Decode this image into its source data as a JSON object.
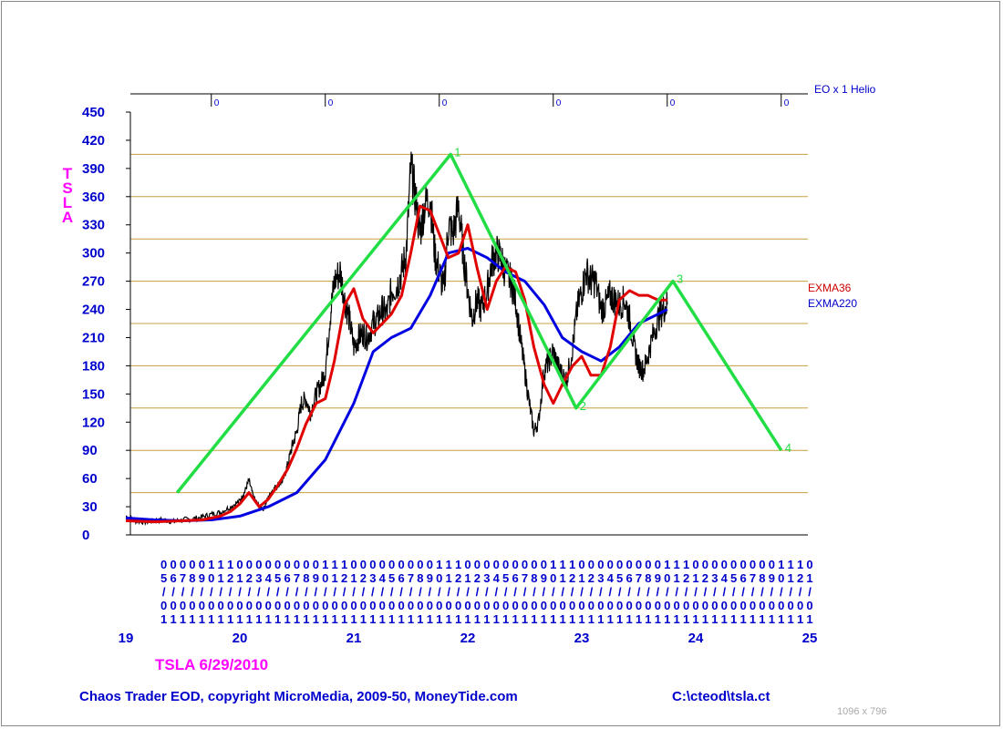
{
  "header": {
    "eo_label": "EO x 1 Helio"
  },
  "symbol_letters": [
    "T",
    "S",
    "L",
    "A"
  ],
  "caption": "TSLA  6/29/2010",
  "footer": {
    "copyright": "Chaos Trader EOD, copyright MicroMedia, 2009-50, MoneyTide.com",
    "path": "C:\\cteod\\tsla.ct"
  },
  "window_size_label": "1096 x 796",
  "colors": {
    "price": "#000000",
    "exma36": "#e00000",
    "exma220": "#0000e0",
    "wave": "#22dd44",
    "grid": "#c8a040",
    "axis": "#0000cc"
  },
  "chart_data": {
    "type": "line",
    "ylim": [
      0,
      450
    ],
    "xlim": [
      2019.0,
      2025.0
    ],
    "y_ticks": [
      "0",
      "30",
      "60",
      "90",
      "120",
      "150",
      "180",
      "210",
      "240",
      "270",
      "300",
      "330",
      "360",
      "390",
      "420",
      "450"
    ],
    "horizontal_levels": [
      45,
      90,
      135,
      180,
      225,
      270,
      315,
      360,
      405
    ],
    "top_scale_labels": [
      "0",
      "0",
      "0",
      "0",
      "0",
      "0"
    ],
    "top_scale_x": [
      2019.75,
      2020.75,
      2021.75,
      2022.75,
      2023.75,
      2024.75
    ],
    "month_labels": [
      "05/01",
      "06/01",
      "07/01",
      "08/01",
      "09/01",
      "10/01",
      "11/01",
      "12/01",
      "01/01",
      "02/01",
      "03/01",
      "04/01",
      "05/01",
      "06/01",
      "07/01",
      "08/01",
      "09/01",
      "10/01",
      "11/01",
      "12/01",
      "01/01",
      "02/01",
      "03/01",
      "04/01",
      "05/01",
      "06/01",
      "07/01",
      "08/01",
      "09/01",
      "10/01",
      "11/01",
      "12/01",
      "01/01",
      "02/01",
      "03/01",
      "04/01",
      "05/01",
      "06/01",
      "07/01",
      "08/01",
      "09/01",
      "10/01",
      "11/01",
      "12/01",
      "01/01",
      "02/01",
      "03/01",
      "04/01",
      "05/01",
      "06/01",
      "07/01",
      "08/01",
      "09/01",
      "10/01",
      "11/01",
      "12/01",
      "01/01",
      "02/01",
      "03/01",
      "04/01",
      "05/01",
      "06/01",
      "07/01",
      "08/01",
      "09/01",
      "10/01",
      "11/01",
      "12/01",
      "01/01"
    ],
    "year_labels": [
      "19",
      "20",
      "21",
      "22",
      "23",
      "24",
      "25"
    ],
    "year_x": [
      2019.0,
      2020.0,
      2021.0,
      2022.0,
      2023.0,
      2024.0,
      2025.0
    ],
    "series": [
      {
        "name": "",
        "x": [
          2019.0,
          2019.08,
          2019.17,
          2019.25,
          2019.33,
          2019.42,
          2019.5,
          2019.58,
          2019.67,
          2019.75,
          2019.83,
          2019.92,
          2020.0,
          2020.04,
          2020.08,
          2020.12,
          2020.17,
          2020.21,
          2020.25,
          2020.29,
          2020.33,
          2020.38,
          2020.42,
          2020.46,
          2020.5,
          2020.54,
          2020.58,
          2020.62,
          2020.67,
          2020.71,
          2020.75,
          2020.79,
          2020.83,
          2020.88,
          2020.92,
          2020.96,
          2021.0,
          2021.04,
          2021.08,
          2021.12,
          2021.17,
          2021.21,
          2021.25,
          2021.29,
          2021.33,
          2021.38,
          2021.42,
          2021.46,
          2021.5,
          2021.54,
          2021.58,
          2021.62,
          2021.67,
          2021.71,
          2021.75,
          2021.79,
          2021.83,
          2021.87,
          2021.92,
          2021.96,
          2022.0,
          2022.04,
          2022.08,
          2022.12,
          2022.17,
          2022.21,
          2022.25,
          2022.29,
          2022.33,
          2022.38,
          2022.42,
          2022.46,
          2022.5,
          2022.54,
          2022.58,
          2022.62,
          2022.67,
          2022.71,
          2022.75,
          2022.79,
          2022.83,
          2022.87,
          2022.92,
          2022.96,
          2023.0,
          2023.04,
          2023.08,
          2023.12,
          2023.17,
          2023.21,
          2023.25,
          2023.29,
          2023.33,
          2023.38,
          2023.42,
          2023.46,
          2023.5,
          2023.54,
          2023.58,
          2023.62,
          2023.67,
          2023.71,
          2023.75
        ],
        "values": [
          20,
          15,
          14,
          15,
          16,
          14,
          16,
          17,
          19,
          22,
          24,
          30,
          36,
          45,
          58,
          40,
          30,
          28,
          40,
          48,
          53,
          58,
          75,
          95,
          110,
          140,
          145,
          130,
          150,
          160,
          175,
          230,
          270,
          280,
          250,
          230,
          200,
          210,
          215,
          210,
          225,
          230,
          240,
          235,
          260,
          265,
          280,
          300,
          390,
          360,
          320,
          350,
          360,
          300,
          280,
          260,
          330,
          320,
          350,
          300,
          260,
          230,
          250,
          240,
          260,
          290,
          300,
          295,
          280,
          270,
          250,
          210,
          175,
          140,
          110,
          120,
          175,
          185,
          195,
          180,
          170,
          165,
          200,
          240,
          260,
          280,
          270,
          270,
          240,
          245,
          255,
          250,
          245,
          250,
          230,
          200,
          180,
          175,
          190,
          210,
          230,
          240,
          245
        ]
      },
      {
        "name": "EXMA36",
        "x": [
          2019.0,
          2019.25,
          2019.5,
          2019.67,
          2019.83,
          2019.92,
          2020.0,
          2020.08,
          2020.17,
          2020.25,
          2020.33,
          2020.42,
          2020.5,
          2020.58,
          2020.67,
          2020.75,
          2020.83,
          2020.92,
          2021.0,
          2021.08,
          2021.17,
          2021.25,
          2021.33,
          2021.42,
          2021.5,
          2021.58,
          2021.67,
          2021.75,
          2021.83,
          2021.92,
          2022.0,
          2022.08,
          2022.17,
          2022.25,
          2022.33,
          2022.42,
          2022.5,
          2022.58,
          2022.67,
          2022.75,
          2022.83,
          2022.92,
          2023.0,
          2023.08,
          2023.17,
          2023.25,
          2023.33,
          2023.42,
          2023.5,
          2023.58,
          2023.67,
          2023.75
        ],
        "values": [
          15,
          14,
          15,
          16,
          20,
          25,
          33,
          45,
          30,
          38,
          52,
          70,
          92,
          118,
          140,
          145,
          185,
          245,
          262,
          230,
          215,
          225,
          235,
          255,
          300,
          350,
          345,
          320,
          295,
          300,
          330,
          285,
          240,
          270,
          285,
          280,
          250,
          200,
          160,
          140,
          160,
          180,
          190,
          170,
          170,
          200,
          250,
          260,
          255,
          255,
          250,
          250
        ]
      },
      {
        "name": "EXMA220",
        "x": [
          2019.0,
          2019.25,
          2019.5,
          2019.75,
          2020.0,
          2020.25,
          2020.5,
          2020.75,
          2021.0,
          2021.17,
          2021.33,
          2021.5,
          2021.67,
          2021.83,
          2022.0,
          2022.17,
          2022.33,
          2022.5,
          2022.67,
          2022.83,
          2023.0,
          2023.17,
          2023.33,
          2023.5,
          2023.67,
          2023.75
        ],
        "values": [
          18,
          16,
          15,
          16,
          20,
          30,
          45,
          80,
          140,
          195,
          210,
          220,
          255,
          300,
          305,
          295,
          280,
          270,
          245,
          210,
          195,
          185,
          200,
          225,
          235,
          240
        ]
      },
      {
        "name": "",
        "x": [
          2019.45,
          2021.85,
          2022.95,
          2023.8,
          2024.75
        ],
        "values": [
          45,
          405,
          135,
          270,
          90
        ],
        "labels": [
          "",
          "1",
          "2",
          "3",
          "4"
        ]
      }
    ],
    "title": "",
    "xlabel": "",
    "ylabel": ""
  }
}
